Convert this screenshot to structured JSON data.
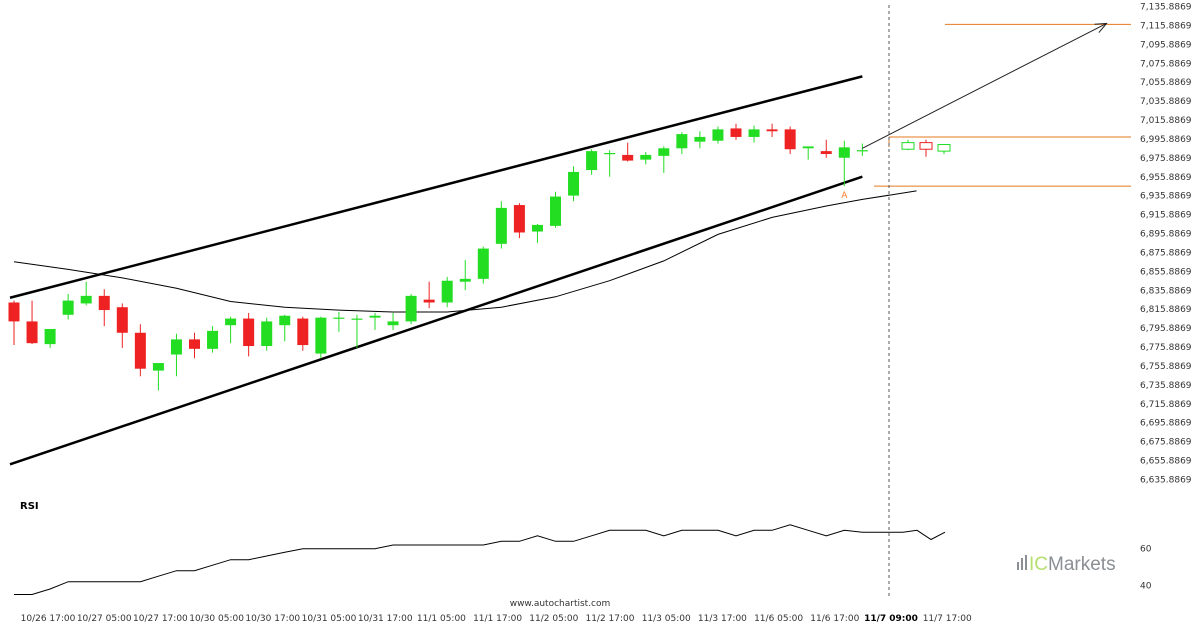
{
  "colors": {
    "bull": "#22dd22",
    "bear": "#ee2222",
    "orange": "#e47a1e",
    "rsi": "#000000"
  },
  "watermark": "www.autochartist.com",
  "brand": {
    "prefix": "IC",
    "suffix": "Markets"
  },
  "chart_data": {
    "type": "candlestick",
    "y_axis": {
      "labels": [
        "7,135.8869",
        "7,115.8869",
        "7,095.8869",
        "7,075.8869",
        "7,055.8869",
        "7,035.8869",
        "7,015.8869",
        "6,995.8869",
        "6,975.8869",
        "6,955.8869",
        "6,935.8869",
        "6,915.8869",
        "6,895.8869",
        "6,875.8869",
        "6,855.8869",
        "6,835.8869",
        "6,815.8869",
        "6,795.8869",
        "6,775.8869",
        "6,755.8869",
        "6,735.8869",
        "6,715.8869",
        "6,695.8869",
        "6,675.8869",
        "6,655.8869",
        "6,635.8869"
      ],
      "range": [
        6635.8869,
        7135.8869
      ]
    },
    "x_axis": {
      "labels": [
        "10/26 17:00",
        "10/27 05:00",
        "10/27 17:00",
        "10/30 05:00",
        "10/30 17:00",
        "10/31 05:00",
        "10/31 17:00",
        "11/1 05:00",
        "11/1 17:00",
        "11/2 05:00",
        "11/2 17:00",
        "11/3 05:00",
        "11/3 17:00",
        "11/6 05:00",
        "11/6 17:00",
        "11/7 09:00",
        "11/7 17:00"
      ],
      "highlighted": "11/7 09:00"
    },
    "candles": [
      [
        6823,
        6825,
        6778,
        6803
      ],
      [
        6803,
        6825,
        6779,
        6780
      ],
      [
        6779,
        6795,
        6775,
        6795
      ],
      [
        6810,
        6832,
        6805,
        6825
      ],
      [
        6822,
        6845,
        6820,
        6830
      ],
      [
        6830,
        6837,
        6798,
        6815
      ],
      [
        6818,
        6822,
        6775,
        6791
      ],
      [
        6791,
        6800,
        6745,
        6753
      ],
      [
        6751,
        6758,
        6730,
        6759
      ],
      [
        6768,
        6790,
        6745,
        6784
      ],
      [
        6784,
        6791,
        6764,
        6774
      ],
      [
        6774,
        6798,
        6770,
        6793
      ],
      [
        6799,
        6808,
        6780,
        6806
      ],
      [
        6806,
        6812,
        6766,
        6777
      ],
      [
        6777,
        6807,
        6772,
        6803
      ],
      [
        6799,
        6810,
        6782,
        6809
      ],
      [
        6806,
        6808,
        6772,
        6778
      ],
      [
        6769,
        6808,
        6764,
        6807
      ],
      [
        6807,
        6813,
        6792,
        6807
      ],
      [
        6805,
        6810,
        6775,
        6806
      ],
      [
        6807,
        6812,
        6794,
        6809
      ],
      [
        6799,
        6812,
        6794,
        6803
      ],
      [
        6803,
        6832,
        6800,
        6830
      ],
      [
        6826,
        6845,
        6817,
        6823
      ],
      [
        6823,
        6850,
        6818,
        6846
      ],
      [
        6845,
        6868,
        6836,
        6848
      ],
      [
        6848,
        6882,
        6843,
        6880
      ],
      [
        6885,
        6930,
        6880,
        6923
      ],
      [
        6926,
        6928,
        6891,
        6897
      ],
      [
        6898,
        6906,
        6886,
        6905
      ],
      [
        6904,
        6940,
        6902,
        6935
      ],
      [
        6936,
        6967,
        6930,
        6961
      ],
      [
        6963,
        6985,
        6958,
        6983
      ],
      [
        6981,
        6984,
        6956,
        6981
      ],
      [
        6979,
        6992,
        6972,
        6973
      ],
      [
        6974,
        6982,
        6969,
        6979
      ],
      [
        6978,
        6988,
        6960,
        6986
      ],
      [
        6986,
        7003,
        6980,
        7001
      ],
      [
        6993,
        7004,
        6986,
        6998
      ],
      [
        6994,
        7009,
        6991,
        7006
      ],
      [
        7007,
        7012,
        6995,
        6998
      ],
      [
        6998,
        7010,
        6992,
        7006
      ],
      [
        7006,
        7012,
        6998,
        7004
      ],
      [
        7006,
        7009,
        6980,
        6985
      ],
      [
        6986,
        6988,
        6974,
        6988
      ],
      [
        6983,
        6995,
        6976,
        6980
      ],
      [
        6976,
        6994,
        6946,
        6987
      ],
      [
        6984,
        6991,
        6978,
        6984
      ]
    ],
    "forecast_candles": [
      [
        6985,
        6995,
        6984,
        6992
      ],
      [
        6992,
        6995,
        6977,
        6985
      ],
      [
        6983,
        6990,
        6980,
        6990
      ]
    ],
    "channel": {
      "upper": [
        [
          0,
          6828
        ],
        [
          47,
          7062
        ]
      ],
      "lower": [
        [
          0,
          6652
        ],
        [
          47,
          6956
        ]
      ]
    },
    "moving_average": [
      [
        0,
        6866
      ],
      [
        3,
        6858
      ],
      [
        6,
        6849
      ],
      [
        9,
        6838
      ],
      [
        12,
        6824
      ],
      [
        15,
        6818
      ],
      [
        18,
        6815
      ],
      [
        21,
        6813
      ],
      [
        24,
        6813
      ],
      [
        27,
        6818
      ],
      [
        30,
        6829
      ],
      [
        33,
        6846
      ],
      [
        36,
        6867
      ],
      [
        39,
        6895
      ],
      [
        42,
        6913
      ],
      [
        45,
        6925
      ],
      [
        47,
        6932
      ],
      [
        50,
        6941
      ]
    ],
    "forecast": {
      "from": [
        47,
        6986
      ],
      "to": [
        51,
        7118
      ]
    },
    "target_level": 7117,
    "resistance_level": 6998,
    "support_level": 6946,
    "marker_label": "A",
    "marker_point": [
      46,
      6946
    ],
    "rsi": {
      "title": "RSI",
      "axis_labels": [
        "60",
        "40"
      ],
      "range": [
        32,
        92
      ],
      "values": [
        [
          0,
          35
        ],
        [
          1,
          35
        ],
        [
          2,
          38
        ],
        [
          3,
          42
        ],
        [
          4,
          42
        ],
        [
          5,
          42
        ],
        [
          6,
          42
        ],
        [
          7,
          42
        ],
        [
          8,
          45
        ],
        [
          9,
          48
        ],
        [
          10,
          48
        ],
        [
          11,
          51
        ],
        [
          12,
          54
        ],
        [
          13,
          54
        ],
        [
          14,
          56
        ],
        [
          15,
          58
        ],
        [
          16,
          60
        ],
        [
          17,
          60
        ],
        [
          18,
          60
        ],
        [
          19,
          60
        ],
        [
          20,
          60
        ],
        [
          21,
          62
        ],
        [
          22,
          62
        ],
        [
          23,
          62
        ],
        [
          24,
          62
        ],
        [
          25,
          62
        ],
        [
          26,
          62
        ],
        [
          27,
          64
        ],
        [
          28,
          64
        ],
        [
          29,
          67
        ],
        [
          30,
          64
        ],
        [
          31,
          64
        ],
        [
          32,
          67
        ],
        [
          33,
          70
        ],
        [
          34,
          70
        ],
        [
          35,
          70
        ],
        [
          36,
          67
        ],
        [
          37,
          70
        ],
        [
          38,
          70
        ],
        [
          39,
          70
        ],
        [
          40,
          67
        ],
        [
          41,
          70
        ],
        [
          42,
          70
        ],
        [
          43,
          73
        ],
        [
          44,
          70
        ],
        [
          45,
          67
        ],
        [
          46,
          70
        ],
        [
          47,
          69
        ],
        [
          48,
          69
        ],
        [
          49,
          70
        ],
        [
          50,
          65
        ],
        [
          51,
          69
        ]
      ]
    }
  }
}
